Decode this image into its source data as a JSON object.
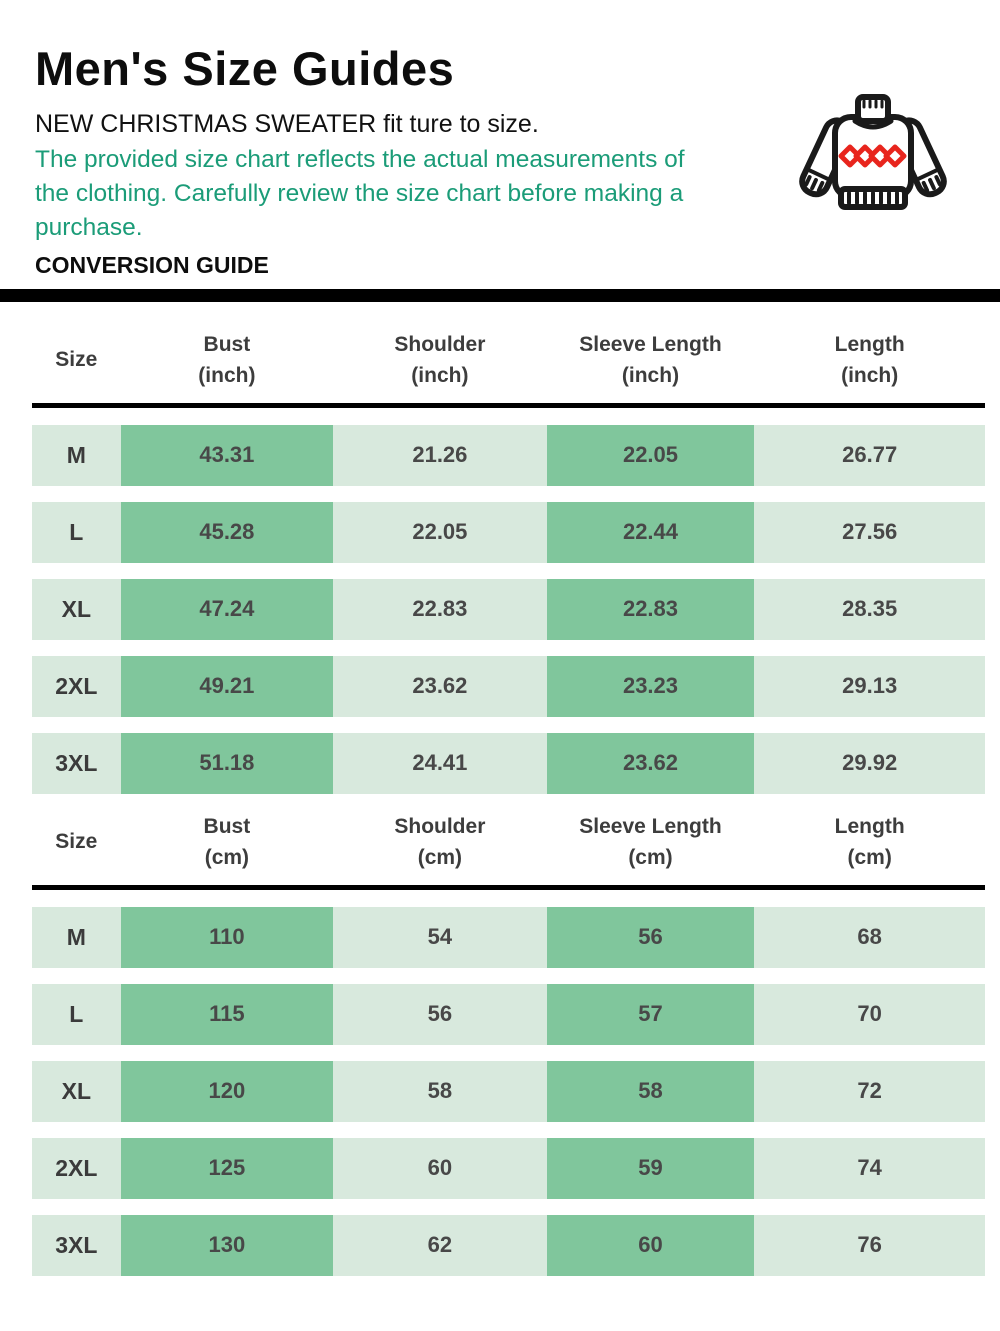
{
  "header": {
    "title": "Men's Size Guides",
    "subtitle": "NEW CHRISTMAS SWEATER fit ture to size.",
    "note": "The provided size chart reflects the actual measurements of the clothing. Carefully review the size chart before making a purchase.",
    "section_label": "CONVERSION GUIDE",
    "icon": "christmas-sweater-icon"
  },
  "colors": {
    "note_green": "#1B9C78",
    "row_light_green": "#D8E9DD",
    "cell_dark_green": "#80C69C",
    "divider_black": "#000000",
    "cell_text": "#484848",
    "diamond_red": "#E8251D"
  },
  "tables": [
    {
      "unit_label": "(inch)",
      "columns": [
        {
          "label": "Size",
          "unit": ""
        },
        {
          "label": "Bust",
          "unit": "(inch)"
        },
        {
          "label": "Shoulder",
          "unit": "(inch)"
        },
        {
          "label": "Sleeve Length",
          "unit": "(inch)"
        },
        {
          "label": "Length",
          "unit": "(inch)"
        }
      ],
      "rows": [
        {
          "size": "M",
          "bust": "43.31",
          "shoulder": "21.26",
          "sleeve_length": "22.05",
          "length": "26.77"
        },
        {
          "size": "L",
          "bust": "45.28",
          "shoulder": "22.05",
          "sleeve_length": "22.44",
          "length": "27.56"
        },
        {
          "size": "XL",
          "bust": "47.24",
          "shoulder": "22.83",
          "sleeve_length": "22.83",
          "length": "28.35"
        },
        {
          "size": "2XL",
          "bust": "49.21",
          "shoulder": "23.62",
          "sleeve_length": "23.23",
          "length": "29.13"
        },
        {
          "size": "3XL",
          "bust": "51.18",
          "shoulder": "24.41",
          "sleeve_length": "23.62",
          "length": "29.92"
        }
      ]
    },
    {
      "unit_label": "(cm)",
      "columns": [
        {
          "label": "Size",
          "unit": ""
        },
        {
          "label": "Bust",
          "unit": "(cm)"
        },
        {
          "label": "Shoulder",
          "unit": "(cm)"
        },
        {
          "label": "Sleeve Length",
          "unit": "(cm)"
        },
        {
          "label": "Length",
          "unit": "(cm)"
        }
      ],
      "rows": [
        {
          "size": "M",
          "bust": "110",
          "shoulder": "54",
          "sleeve_length": "56",
          "length": "68"
        },
        {
          "size": "L",
          "bust": "115",
          "shoulder": "56",
          "sleeve_length": "57",
          "length": "70"
        },
        {
          "size": "XL",
          "bust": "120",
          "shoulder": "58",
          "sleeve_length": "58",
          "length": "72"
        },
        {
          "size": "2XL",
          "bust": "125",
          "shoulder": "60",
          "sleeve_length": "59",
          "length": "74"
        },
        {
          "size": "3XL",
          "bust": "130",
          "shoulder": "62",
          "sleeve_length": "60",
          "length": "76"
        }
      ]
    }
  ]
}
